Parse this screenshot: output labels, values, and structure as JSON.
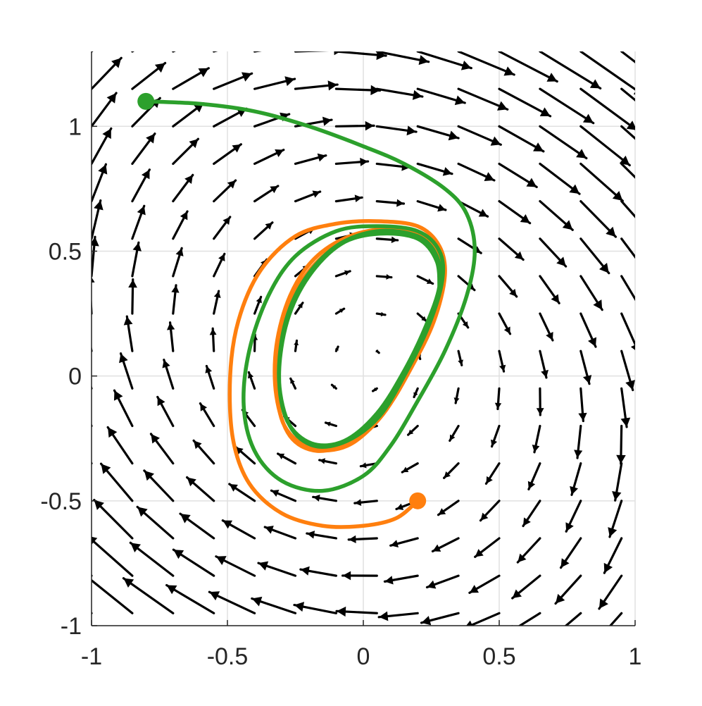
{
  "chart_data": {
    "type": "quiver+line",
    "title": "",
    "xlabel": "",
    "ylabel": "",
    "xlim": [
      -1,
      1
    ],
    "ylim": [
      -1,
      1.3
    ],
    "grid": true,
    "x_ticks": [
      -1,
      -0.5,
      0,
      0.5,
      1
    ],
    "y_ticks": [
      -1,
      -0.5,
      0,
      0.5,
      1
    ],
    "x_tick_labels": [
      "-1",
      "-0.5",
      "0",
      "0.5",
      "1"
    ],
    "y_tick_labels": [
      "-1",
      "-0.5",
      "0",
      "0.5",
      "1"
    ],
    "vector_field": {
      "color": "#000000",
      "grid_x": [
        -1.0,
        -0.85,
        -0.7,
        -0.55,
        -0.4,
        -0.25,
        -0.1,
        0.05,
        0.2,
        0.35,
        0.5,
        0.65,
        0.8,
        0.95
      ],
      "grid_y": [
        -0.95,
        -0.8,
        -0.65,
        -0.5,
        -0.35,
        -0.2,
        -0.05,
        0.1,
        0.25,
        0.4,
        0.55,
        0.7,
        0.85,
        1.0,
        1.15,
        1.3
      ],
      "field_center": [
        0.0,
        0.05
      ],
      "description": "clockwise rotation with outward spiral"
    },
    "series": [
      {
        "color": "#2ca02c",
        "start": [
          -0.8,
          1.1
        ],
        "points": [
          [
            -0.8,
            1.1
          ],
          [
            -0.6,
            1.09
          ],
          [
            -0.4,
            1.06
          ],
          [
            -0.2,
            1.0
          ],
          [
            0.0,
            0.92
          ],
          [
            0.15,
            0.85
          ],
          [
            0.3,
            0.75
          ],
          [
            0.38,
            0.65
          ],
          [
            0.41,
            0.5
          ],
          [
            0.38,
            0.32
          ],
          [
            0.3,
            0.1
          ],
          [
            0.2,
            -0.1
          ],
          [
            0.1,
            -0.28
          ],
          [
            0.0,
            -0.4
          ],
          [
            -0.15,
            -0.46
          ],
          [
            -0.3,
            -0.42
          ],
          [
            -0.4,
            -0.3
          ],
          [
            -0.44,
            -0.12
          ],
          [
            -0.42,
            0.1
          ],
          [
            -0.35,
            0.32
          ],
          [
            -0.25,
            0.48
          ],
          [
            -0.1,
            0.58
          ],
          [
            0.05,
            0.6
          ],
          [
            0.2,
            0.58
          ],
          [
            0.28,
            0.5
          ],
          [
            0.29,
            0.38
          ],
          [
            0.24,
            0.2
          ],
          [
            0.16,
            0.02
          ],
          [
            0.06,
            -0.16
          ],
          [
            -0.06,
            -0.26
          ],
          [
            -0.18,
            -0.28
          ],
          [
            -0.27,
            -0.2
          ],
          [
            -0.31,
            -0.02
          ],
          [
            -0.29,
            0.2
          ],
          [
            -0.22,
            0.38
          ],
          [
            -0.1,
            0.52
          ],
          [
            0.05,
            0.58
          ],
          [
            0.2,
            0.56
          ],
          [
            0.27,
            0.48
          ],
          [
            0.28,
            0.36
          ],
          [
            0.23,
            0.2
          ],
          [
            0.15,
            0.02
          ],
          [
            0.05,
            -0.15
          ],
          [
            -0.07,
            -0.26
          ],
          [
            -0.19,
            -0.27
          ],
          [
            -0.28,
            -0.18
          ],
          [
            -0.31,
            0.0
          ],
          [
            -0.28,
            0.22
          ],
          [
            -0.2,
            0.4
          ],
          [
            -0.08,
            0.53
          ],
          [
            0.06,
            0.57
          ],
          [
            0.2,
            0.55
          ],
          [
            0.27,
            0.46
          ],
          [
            0.28,
            0.34
          ]
        ]
      },
      {
        "color": "#ff7f0e",
        "start": [
          0.2,
          -0.5
        ],
        "points": [
          [
            0.2,
            -0.5
          ],
          [
            0.12,
            -0.57
          ],
          [
            0.0,
            -0.6
          ],
          [
            -0.15,
            -0.6
          ],
          [
            -0.3,
            -0.55
          ],
          [
            -0.42,
            -0.43
          ],
          [
            -0.48,
            -0.25
          ],
          [
            -0.49,
            0.0
          ],
          [
            -0.46,
            0.22
          ],
          [
            -0.38,
            0.42
          ],
          [
            -0.25,
            0.56
          ],
          [
            -0.1,
            0.61
          ],
          [
            0.05,
            0.62
          ],
          [
            0.2,
            0.6
          ],
          [
            0.28,
            0.52
          ],
          [
            0.3,
            0.4
          ],
          [
            0.26,
            0.22
          ],
          [
            0.18,
            0.04
          ],
          [
            0.08,
            -0.14
          ],
          [
            -0.04,
            -0.26
          ],
          [
            -0.17,
            -0.3
          ],
          [
            -0.27,
            -0.24
          ],
          [
            -0.32,
            -0.08
          ],
          [
            -0.32,
            0.12
          ],
          [
            -0.27,
            0.32
          ],
          [
            -0.18,
            0.47
          ],
          [
            -0.05,
            0.56
          ],
          [
            0.1,
            0.59
          ],
          [
            0.22,
            0.56
          ],
          [
            0.28,
            0.47
          ],
          [
            0.29,
            0.35
          ],
          [
            0.24,
            0.18
          ],
          [
            0.16,
            0.0
          ],
          [
            0.06,
            -0.17
          ],
          [
            -0.06,
            -0.28
          ],
          [
            -0.19,
            -0.29
          ],
          [
            -0.29,
            -0.2
          ],
          [
            -0.32,
            -0.02
          ],
          [
            -0.3,
            0.2
          ],
          [
            -0.22,
            0.39
          ],
          [
            -0.1,
            0.52
          ],
          [
            0.05,
            0.58
          ],
          [
            0.2,
            0.56
          ],
          [
            0.28,
            0.46
          ]
        ]
      }
    ]
  }
}
